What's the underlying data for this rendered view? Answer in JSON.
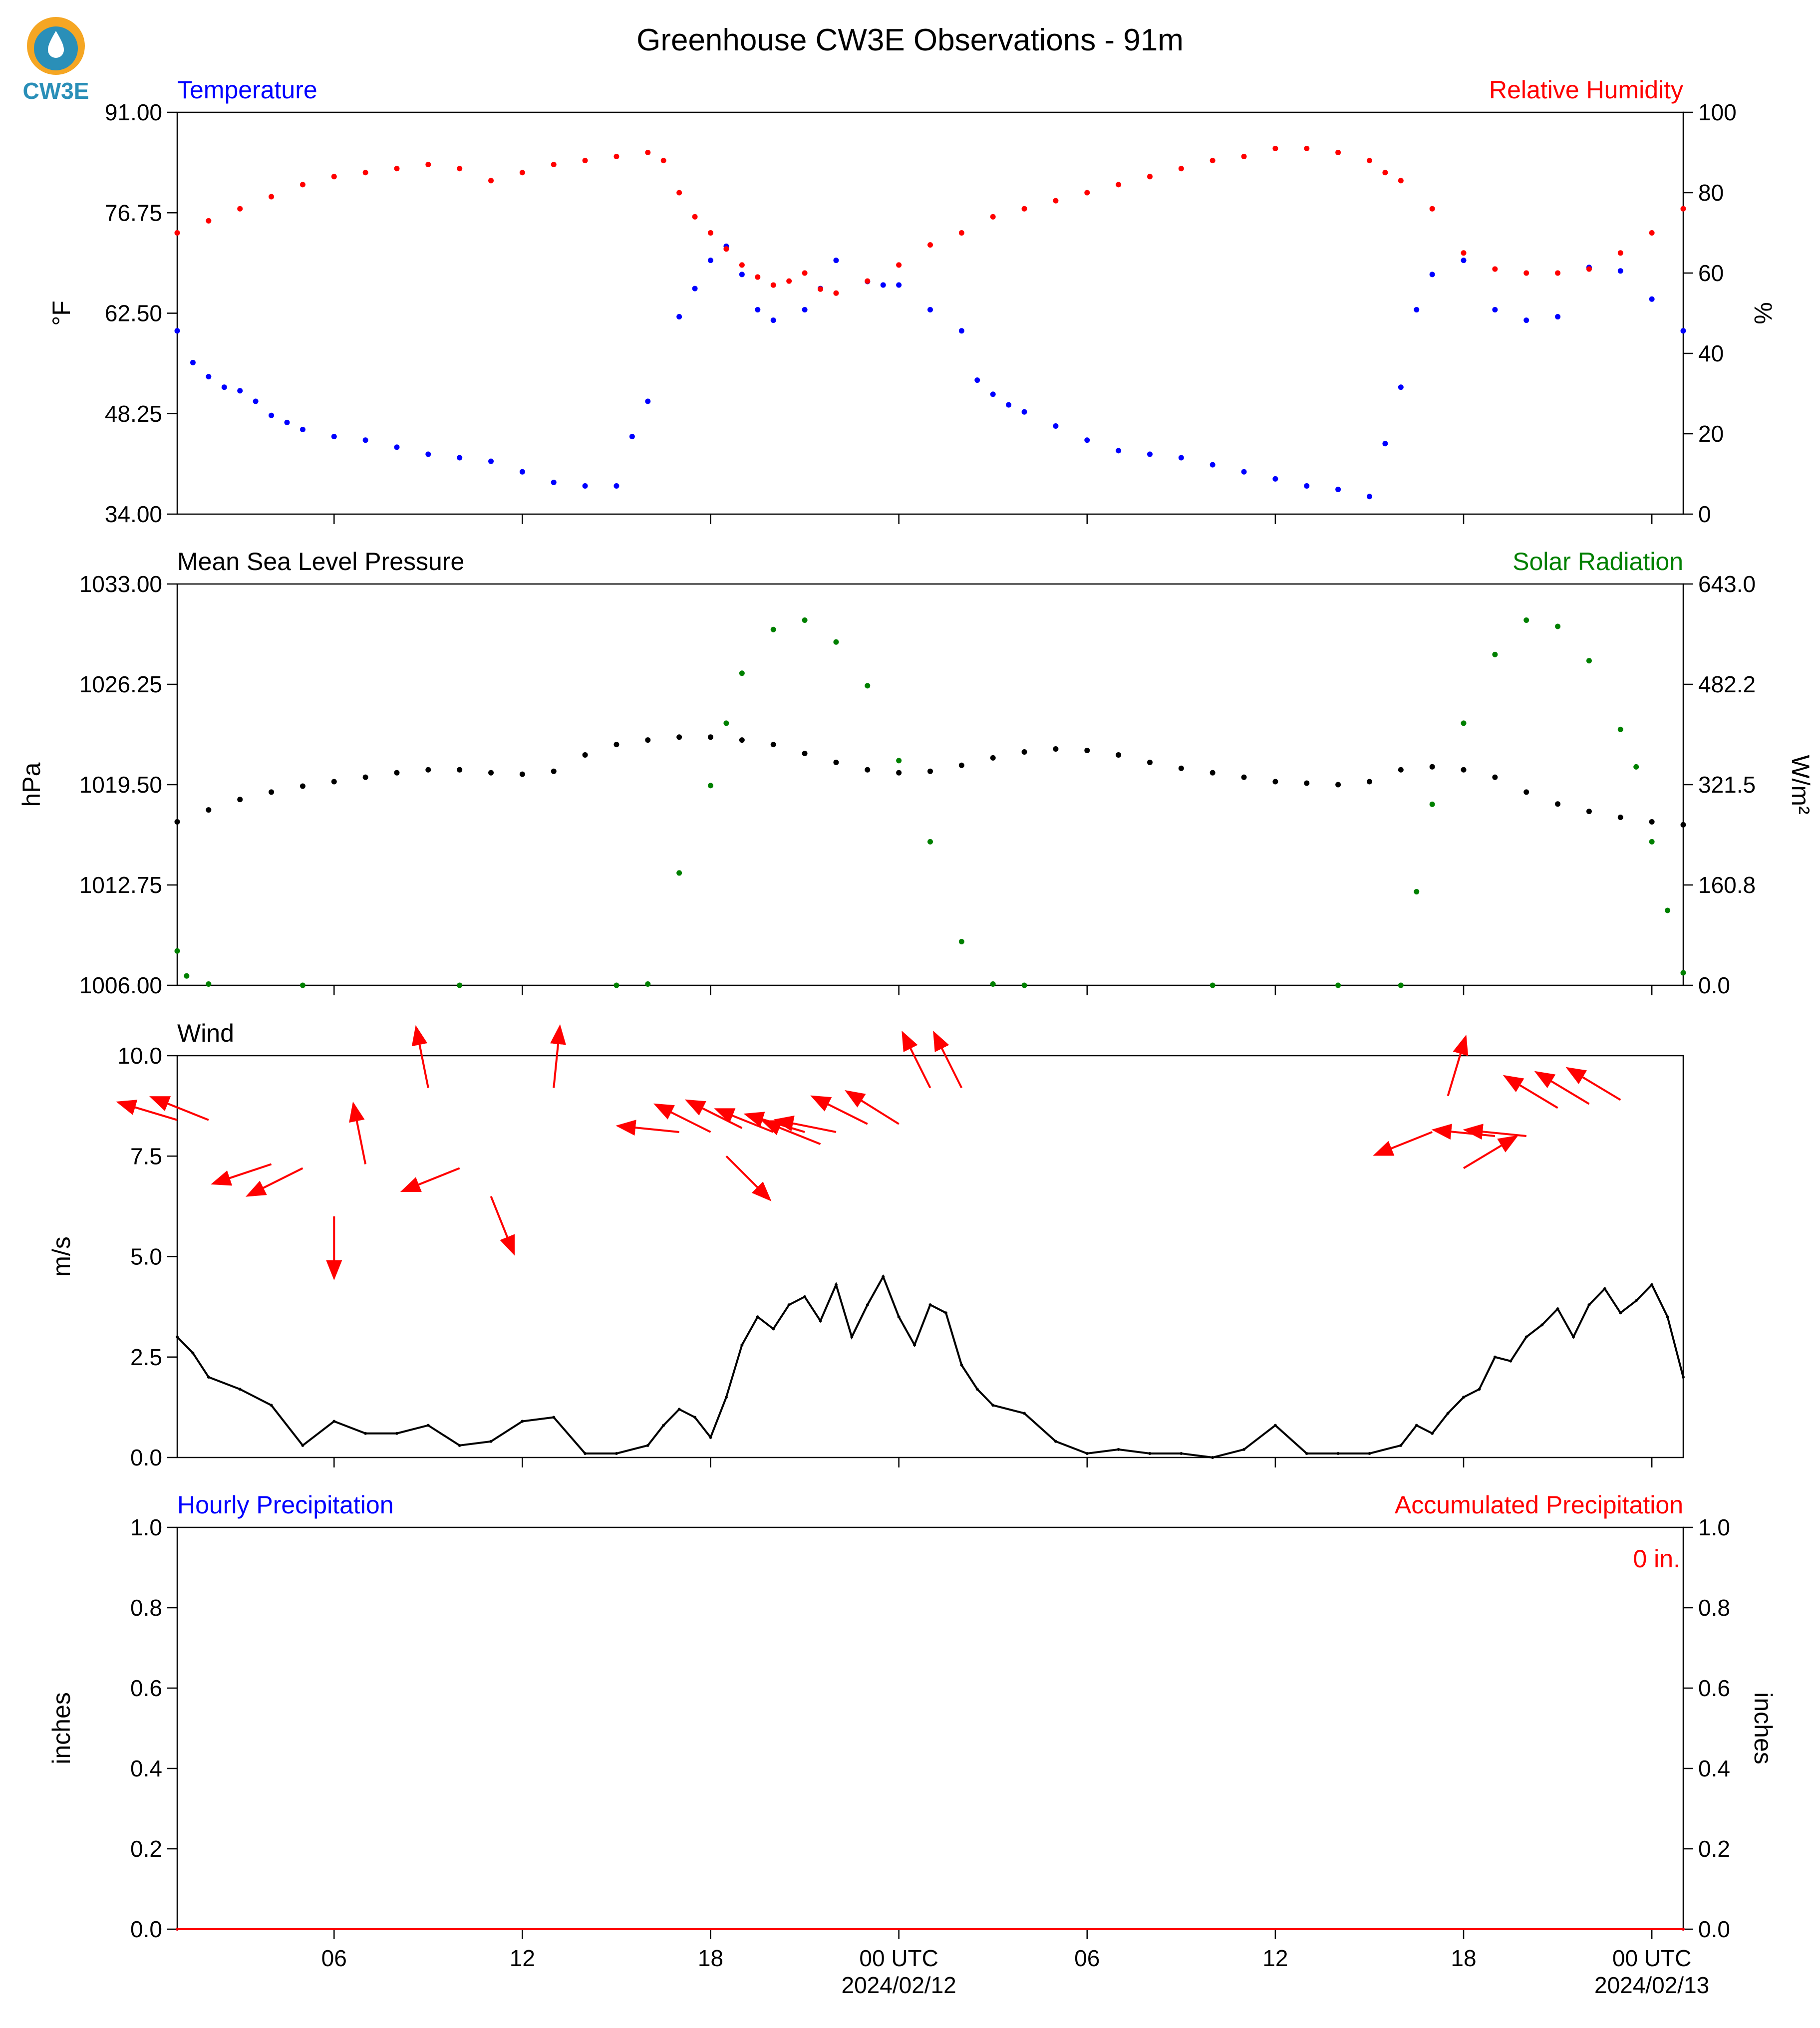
{
  "figure": {
    "title": "Greenhouse CW3E Observations - 91m",
    "logo_text": "CW3E"
  },
  "x_axis": {
    "tick_hours": [
      6,
      12,
      18,
      24,
      30,
      36,
      42,
      48
    ],
    "tick_labels": [
      "06",
      "12",
      "18",
      "00 UTC",
      "06",
      "12",
      "18",
      "00 UTC"
    ],
    "date_labels": [
      {
        "hour": 24,
        "text": "2024/02/12"
      },
      {
        "hour": 48,
        "text": "2024/02/13"
      }
    ],
    "range_hours": [
      1,
      49
    ]
  },
  "colors": {
    "temperature": "#0000ff",
    "humidity": "#ff0000",
    "pressure": "#000000",
    "solar": "#008000",
    "wind_speed": "#000000",
    "wind_arrows": "#ff0000",
    "hourly_precip": "#0000ff",
    "accum_precip": "#ff0000"
  },
  "chart_data": [
    {
      "type": "scatter",
      "panel": "temperature-humidity",
      "left_title": "Temperature",
      "right_title": "Relative Humidity",
      "ylabel_left": "°F",
      "ylabel_right": "%",
      "ylim_left": [
        34,
        91
      ],
      "ylim_right": [
        0,
        100
      ],
      "yticks_left": [
        "91.00",
        "76.75",
        "62.50",
        "48.25",
        "34.00"
      ],
      "yticks_right": [
        "100",
        "80",
        "60",
        "40",
        "20",
        "0"
      ],
      "series": [
        {
          "name": "Temperature",
          "axis": "left",
          "x": [
            1.0,
            1.5,
            2.0,
            2.5,
            3.0,
            3.5,
            4.0,
            4.5,
            5.0,
            6.0,
            7.0,
            8.0,
            9.0,
            10.0,
            11.0,
            12.0,
            13.0,
            14.0,
            15.0,
            15.5,
            16.0,
            17.0,
            17.5,
            18.0,
            18.5,
            19.0,
            19.5,
            20.0,
            21.0,
            21.5,
            22.0,
            23.0,
            23.5,
            24.0,
            25.0,
            26.0,
            26.5,
            27.0,
            27.5,
            28.0,
            29.0,
            30.0,
            31.0,
            32.0,
            33.0,
            34.0,
            35.0,
            36.0,
            37.0,
            38.0,
            39.0,
            39.5,
            40.0,
            40.5,
            41.0,
            42.0,
            43.0,
            44.0,
            45.0,
            46.0,
            47.0,
            48.0,
            49.0
          ],
          "values": [
            60.0,
            55.5,
            53.5,
            52.0,
            51.5,
            50.0,
            48.0,
            47.0,
            46.0,
            45.0,
            44.5,
            43.5,
            42.5,
            42.0,
            41.5,
            40.0,
            38.5,
            38.0,
            38.0,
            45.0,
            50.0,
            62.0,
            66.0,
            70.0,
            72.0,
            68.0,
            63.0,
            61.5,
            63.0,
            66.0,
            70.0,
            67.0,
            66.5,
            66.5,
            63.0,
            60.0,
            53.0,
            51.0,
            49.5,
            48.5,
            46.5,
            44.5,
            43.0,
            42.5,
            42.0,
            41.0,
            40.0,
            39.0,
            38.0,
            37.5,
            36.5,
            44.0,
            52.0,
            63.0,
            68.0,
            70.0,
            63.0,
            61.5,
            62.0,
            69.0,
            68.5,
            64.5,
            60.0
          ]
        },
        {
          "name": "Relative Humidity",
          "axis": "right",
          "x": [
            1.0,
            2.0,
            3.0,
            4.0,
            5.0,
            6.0,
            7.0,
            8.0,
            9.0,
            10.0,
            11.0,
            12.0,
            13.0,
            14.0,
            15.0,
            16.0,
            16.5,
            17.0,
            17.5,
            18.0,
            18.5,
            19.0,
            19.5,
            20.0,
            20.5,
            21.0,
            21.5,
            22.0,
            23.0,
            24.0,
            25.0,
            26.0,
            27.0,
            28.0,
            29.0,
            30.0,
            31.0,
            32.0,
            33.0,
            34.0,
            35.0,
            36.0,
            37.0,
            38.0,
            39.0,
            39.5,
            40.0,
            41.0,
            42.0,
            43.0,
            44.0,
            45.0,
            46.0,
            47.0,
            48.0,
            49.0
          ],
          "values": [
            70,
            73,
            76,
            79,
            82,
            84,
            85,
            86,
            87,
            86,
            83,
            85,
            87,
            88,
            89,
            90,
            88,
            80,
            74,
            70,
            66,
            62,
            59,
            57,
            58,
            60,
            56,
            55,
            58,
            62,
            67,
            70,
            74,
            76,
            78,
            80,
            82,
            84,
            86,
            88,
            89,
            91,
            91,
            90,
            88,
            85,
            83,
            76,
            65,
            61,
            60,
            60,
            61,
            65,
            70,
            76
          ]
        }
      ]
    },
    {
      "type": "scatter",
      "panel": "pressure-solar",
      "left_title": "Mean Sea Level Pressure",
      "right_title": "Solar Radiation",
      "ylabel_left": "hPa",
      "ylabel_right": "W/m²",
      "ylim_left": [
        1006,
        1033
      ],
      "ylim_right": [
        0,
        643
      ],
      "yticks_left": [
        "1033.00",
        "1026.25",
        "1019.50",
        "1012.75",
        "1006.00"
      ],
      "yticks_right": [
        "643.0",
        "482.2",
        "321.5",
        "160.8",
        "0.0"
      ],
      "series": [
        {
          "name": "Mean Sea Level Pressure",
          "axis": "left",
          "x": [
            1,
            2,
            3,
            4,
            5,
            6,
            7,
            8,
            9,
            10,
            11,
            12,
            13,
            14,
            15,
            16,
            17,
            18,
            19,
            20,
            21,
            22,
            23,
            24,
            25,
            26,
            27,
            28,
            29,
            30,
            31,
            32,
            33,
            34,
            35,
            36,
            37,
            38,
            39,
            40,
            41,
            42,
            43,
            44,
            45,
            46,
            47,
            48,
            49
          ],
          "values": [
            1017.0,
            1017.8,
            1018.5,
            1019.0,
            1019.4,
            1019.7,
            1020.0,
            1020.3,
            1020.5,
            1020.5,
            1020.3,
            1020.2,
            1020.4,
            1021.5,
            1022.2,
            1022.5,
            1022.7,
            1022.7,
            1022.5,
            1022.2,
            1021.6,
            1021.0,
            1020.5,
            1020.3,
            1020.4,
            1020.8,
            1021.3,
            1021.7,
            1021.9,
            1021.8,
            1021.5,
            1021.0,
            1020.6,
            1020.3,
            1020.0,
            1019.7,
            1019.6,
            1019.5,
            1019.7,
            1020.5,
            1020.7,
            1020.5,
            1020.0,
            1019.0,
            1018.2,
            1017.7,
            1017.3,
            1017.0,
            1016.8
          ]
        },
        {
          "name": "Solar Radiation",
          "axis": "right",
          "x": [
            1.0,
            1.3,
            2.0,
            5.0,
            10.0,
            15.0,
            16.0,
            17.0,
            18.0,
            18.5,
            19.0,
            20.0,
            21.0,
            22.0,
            23.0,
            24.0,
            25.0,
            26.0,
            27.0,
            28.0,
            34.0,
            38.0,
            40.0,
            40.5,
            41.0,
            42.0,
            43.0,
            44.0,
            45.0,
            46.0,
            47.0,
            47.5,
            48.0,
            48.5,
            49.0
          ],
          "values": [
            55,
            15,
            2,
            0,
            0,
            0,
            2,
            180,
            320,
            420,
            500,
            570,
            585,
            550,
            480,
            360,
            230,
            70,
            2,
            0,
            0,
            0,
            0,
            150,
            290,
            420,
            530,
            585,
            575,
            520,
            410,
            350,
            230,
            120,
            20
          ]
        }
      ]
    },
    {
      "type": "line",
      "panel": "wind",
      "left_title": "Wind",
      "ylabel_left": "m/s",
      "ylim": [
        0,
        10
      ],
      "yticks": [
        "10.0",
        "7.5",
        "5.0",
        "2.5",
        "0.0"
      ],
      "series": [
        {
          "name": "Wind speed",
          "x": [
            1.0,
            1.5,
            2.0,
            3.0,
            4.0,
            5.0,
            6.0,
            7.0,
            8.0,
            9.0,
            10.0,
            11.0,
            12.0,
            13.0,
            14.0,
            15.0,
            16.0,
            16.5,
            17.0,
            17.5,
            18.0,
            18.5,
            19.0,
            19.5,
            20.0,
            20.5,
            21.0,
            21.5,
            22.0,
            22.5,
            23.0,
            23.5,
            24.0,
            24.5,
            25.0,
            25.5,
            26.0,
            26.5,
            27.0,
            28.0,
            29.0,
            30.0,
            31.0,
            32.0,
            33.0,
            34.0,
            35.0,
            36.0,
            37.0,
            38.0,
            39.0,
            40.0,
            40.5,
            41.0,
            41.5,
            42.0,
            42.5,
            43.0,
            43.5,
            44.0,
            44.5,
            45.0,
            45.5,
            46.0,
            46.5,
            47.0,
            47.5,
            48.0,
            48.5,
            49.0
          ],
          "values": [
            3.0,
            2.6,
            2.0,
            1.7,
            1.3,
            0.3,
            0.9,
            0.6,
            0.6,
            0.8,
            0.3,
            0.4,
            0.9,
            1.0,
            0.1,
            0.1,
            0.3,
            0.8,
            1.2,
            1.0,
            0.5,
            1.5,
            2.8,
            3.5,
            3.2,
            3.8,
            4.0,
            3.4,
            4.3,
            3.0,
            3.8,
            4.5,
            3.5,
            2.8,
            3.8,
            3.6,
            2.3,
            1.7,
            1.3,
            1.1,
            0.4,
            0.1,
            0.2,
            0.1,
            0.1,
            0.0,
            0.2,
            0.8,
            0.1,
            0.1,
            0.1,
            0.3,
            0.8,
            0.6,
            1.1,
            1.5,
            1.7,
            2.5,
            2.4,
            3.0,
            3.3,
            3.7,
            3.0,
            3.8,
            4.2,
            3.6,
            3.9,
            4.3,
            3.5,
            2.0
          ]
        },
        {
          "name": "Wind direction arrows",
          "type": "vector",
          "x": [
            1.0,
            2.0,
            4.0,
            5.0,
            6.0,
            7.0,
            9.0,
            10.0,
            11.0,
            13.0,
            17.0,
            18.0,
            18.5,
            19.0,
            20.0,
            21.0,
            21.5,
            22.0,
            23.0,
            24.0,
            25.0,
            26.0,
            41.0,
            41.5,
            42.0,
            43.0,
            44.0,
            45.0,
            46.0,
            47.0
          ],
          "y": [
            8.4,
            8.4,
            7.3,
            7.2,
            6.0,
            7.3,
            9.2,
            7.2,
            6.5,
            9.2,
            8.1,
            8.1,
            7.5,
            8.2,
            8.1,
            8.1,
            7.8,
            8.1,
            8.3,
            8.3,
            9.2,
            9.2,
            8.1,
            9.0,
            7.2,
            8.0,
            8.0,
            8.7,
            8.8,
            8.9
          ],
          "u": [
            -1.0,
            -1.0,
            -1.2,
            -1.0,
            0.0,
            -0.2,
            -0.2,
            -1.0,
            0.4,
            0.1,
            -1.0,
            -0.8,
            1.0,
            -1.0,
            -1.0,
            -1.0,
            -1.0,
            -1.0,
            -1.0,
            -0.8,
            -0.5,
            -0.5,
            -1.0,
            0.3,
            1.0,
            -1.0,
            -1.0,
            -1.0,
            -1.0,
            -1.0
          ],
          "v": [
            0.3,
            0.4,
            -0.4,
            -0.5,
            -1.0,
            1.0,
            1.0,
            -0.4,
            -1.0,
            1.0,
            0.1,
            0.4,
            -1.0,
            0.5,
            0.4,
            0.3,
            0.4,
            0.2,
            0.5,
            0.5,
            1.0,
            1.0,
            -0.4,
            1.0,
            0.6,
            0.1,
            0.1,
            0.6,
            0.6,
            0.6
          ]
        }
      ]
    },
    {
      "type": "line",
      "panel": "precipitation",
      "left_title": "Hourly Precipitation",
      "right_title": "Accumulated Precipitation",
      "ylabel_left": "inches",
      "ylabel_right": "inches",
      "ylim_left": [
        0,
        1
      ],
      "ylim_right": [
        0,
        1
      ],
      "yticks_left": [
        "1.0",
        "0.8",
        "0.6",
        "0.4",
        "0.2",
        "0.0"
      ],
      "yticks_right": [
        "1.0",
        "0.8",
        "0.6",
        "0.4",
        "0.2",
        "0.0"
      ],
      "annotation": "0 in.",
      "series": [
        {
          "name": "Hourly Precipitation",
          "axis": "left",
          "x": [
            1,
            49
          ],
          "values": [
            0,
            0
          ]
        },
        {
          "name": "Accumulated Precipitation",
          "axis": "right",
          "x": [
            1,
            49
          ],
          "values": [
            0,
            0
          ]
        }
      ]
    }
  ]
}
